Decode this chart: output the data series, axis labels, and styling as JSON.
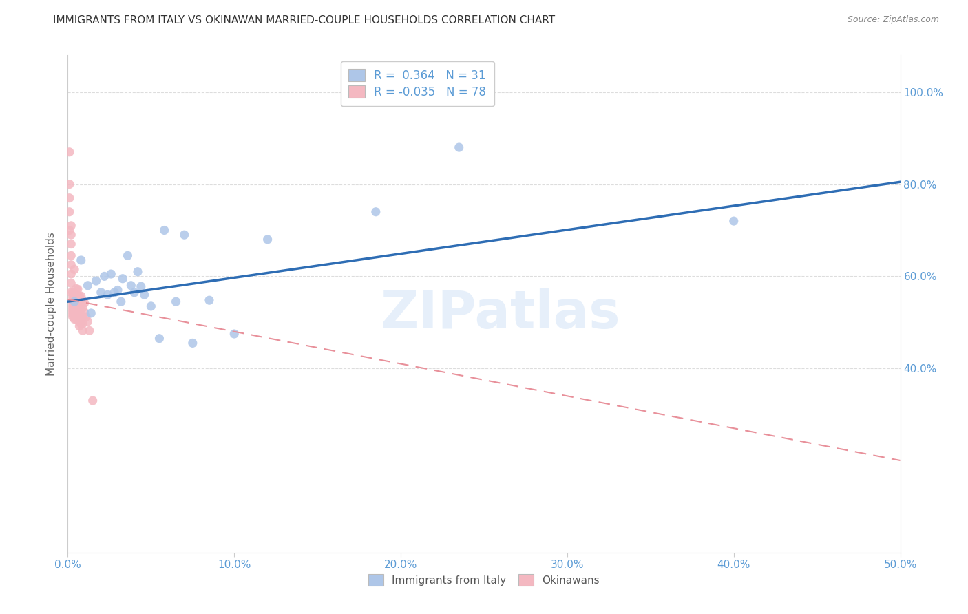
{
  "title": "IMMIGRANTS FROM ITALY VS OKINAWAN MARRIED-COUPLE HOUSEHOLDS CORRELATION CHART",
  "source": "Source: ZipAtlas.com",
  "ylabel": "Married-couple Households",
  "xlim": [
    0,
    0.5
  ],
  "ylim": [
    0.0,
    1.08
  ],
  "xtick_labels": [
    "0.0%",
    "10.0%",
    "20.0%",
    "30.0%",
    "40.0%",
    "50.0%"
  ],
  "xtick_values": [
    0,
    0.1,
    0.2,
    0.3,
    0.4,
    0.5
  ],
  "ytick_labels": [
    "40.0%",
    "60.0%",
    "80.0%",
    "100.0%"
  ],
  "ytick_values": [
    0.4,
    0.6,
    0.8,
    1.0
  ],
  "legend_label_italy": "Immigrants from Italy",
  "legend_label_okinawa": "Okinawans",
  "italy_R": "0.364",
  "italy_N": "31",
  "okinawa_R": "-0.035",
  "okinawa_N": "78",
  "italy_color": "#aec6e8",
  "okinawa_color": "#f4b8c1",
  "italy_line_color": "#2e6db4",
  "okinawa_line_color": "#e8909a",
  "watermark": "ZIPatlas",
  "italy_line_x0": 0.0,
  "italy_line_y0": 0.545,
  "italy_line_x1": 0.5,
  "italy_line_y1": 0.805,
  "okinawa_line_x0": 0.0,
  "okinawa_line_y0": 0.55,
  "okinawa_line_x1": 0.5,
  "okinawa_line_y1": 0.2,
  "italy_scatter_x": [
    0.004,
    0.008,
    0.012,
    0.014,
    0.017,
    0.02,
    0.022,
    0.024,
    0.026,
    0.028,
    0.03,
    0.032,
    0.033,
    0.036,
    0.038,
    0.04,
    0.042,
    0.044,
    0.046,
    0.05,
    0.055,
    0.058,
    0.065,
    0.07,
    0.075,
    0.085,
    0.1,
    0.12,
    0.185,
    0.235,
    0.4
  ],
  "italy_scatter_y": [
    0.545,
    0.635,
    0.58,
    0.52,
    0.59,
    0.565,
    0.6,
    0.56,
    0.605,
    0.565,
    0.57,
    0.545,
    0.595,
    0.645,
    0.58,
    0.565,
    0.61,
    0.578,
    0.56,
    0.535,
    0.465,
    0.7,
    0.545,
    0.69,
    0.455,
    0.548,
    0.475,
    0.68,
    0.74,
    0.88,
    0.72
  ],
  "okinawa_scatter_x": [
    0.001,
    0.001,
    0.001,
    0.001,
    0.001,
    0.002,
    0.002,
    0.002,
    0.002,
    0.002,
    0.002,
    0.002,
    0.002,
    0.003,
    0.003,
    0.003,
    0.003,
    0.003,
    0.003,
    0.003,
    0.003,
    0.003,
    0.003,
    0.004,
    0.004,
    0.004,
    0.004,
    0.004,
    0.004,
    0.004,
    0.004,
    0.004,
    0.004,
    0.004,
    0.005,
    0.005,
    0.005,
    0.005,
    0.005,
    0.005,
    0.005,
    0.005,
    0.005,
    0.005,
    0.005,
    0.006,
    0.006,
    0.006,
    0.006,
    0.006,
    0.006,
    0.006,
    0.006,
    0.006,
    0.007,
    0.007,
    0.007,
    0.007,
    0.007,
    0.007,
    0.007,
    0.007,
    0.008,
    0.008,
    0.008,
    0.008,
    0.008,
    0.009,
    0.009,
    0.009,
    0.009,
    0.009,
    0.01,
    0.01,
    0.011,
    0.012,
    0.013,
    0.015
  ],
  "okinawa_scatter_y": [
    0.87,
    0.8,
    0.77,
    0.74,
    0.7,
    0.71,
    0.69,
    0.67,
    0.645,
    0.625,
    0.605,
    0.585,
    0.565,
    0.565,
    0.555,
    0.548,
    0.543,
    0.537,
    0.532,
    0.527,
    0.522,
    0.517,
    0.512,
    0.615,
    0.563,
    0.557,
    0.552,
    0.543,
    0.537,
    0.532,
    0.527,
    0.522,
    0.512,
    0.507,
    0.573,
    0.558,
    0.552,
    0.547,
    0.542,
    0.537,
    0.532,
    0.527,
    0.522,
    0.512,
    0.507,
    0.572,
    0.557,
    0.552,
    0.547,
    0.537,
    0.532,
    0.527,
    0.522,
    0.512,
    0.557,
    0.547,
    0.542,
    0.532,
    0.522,
    0.512,
    0.502,
    0.492,
    0.557,
    0.542,
    0.527,
    0.512,
    0.497,
    0.547,
    0.532,
    0.512,
    0.497,
    0.482,
    0.542,
    0.522,
    0.512,
    0.502,
    0.482,
    0.33
  ]
}
